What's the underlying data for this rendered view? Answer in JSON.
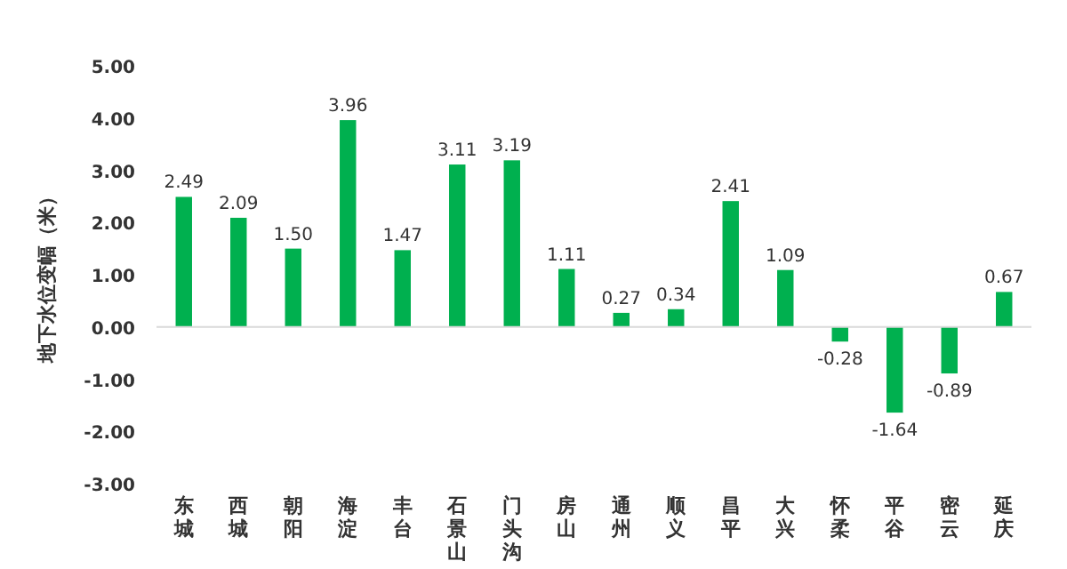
{
  "chart_data": {
    "type": "bar",
    "ylabel": "地下水位变幅（米）",
    "categories": [
      "东城",
      "西城",
      "朝阳",
      "海淀",
      "丰台",
      "石景山",
      "门头沟",
      "房山",
      "通州",
      "顺义",
      "昌平",
      "大兴",
      "怀柔",
      "平谷",
      "密云",
      "延庆"
    ],
    "values": [
      2.49,
      2.09,
      1.5,
      3.96,
      1.47,
      3.11,
      3.19,
      1.11,
      0.27,
      0.34,
      2.41,
      1.09,
      -0.28,
      -1.64,
      -0.89,
      0.67
    ],
    "value_labels": [
      "2.49",
      "2.09",
      "1.50",
      "3.96",
      "1.47",
      "3.11",
      "3.19",
      "1.11",
      "0.27",
      "0.34",
      "2.41",
      "1.09",
      "-0.28",
      "-1.64",
      "-0.89",
      "0.67"
    ],
    "color": "#00b04f",
    "ylim": [
      -3,
      5
    ],
    "yticks": [
      {
        "value": -3,
        "label": "-3.00"
      },
      {
        "value": -2,
        "label": "-2.00"
      },
      {
        "value": -1,
        "label": "-1.00"
      },
      {
        "value": 0,
        "label": "0.00"
      },
      {
        "value": 1,
        "label": "1.00"
      },
      {
        "value": 2,
        "label": "2.00"
      },
      {
        "value": 3,
        "label": "3.00"
      },
      {
        "value": 4,
        "label": "4.00"
      },
      {
        "value": 5,
        "label": "5.00"
      }
    ]
  }
}
